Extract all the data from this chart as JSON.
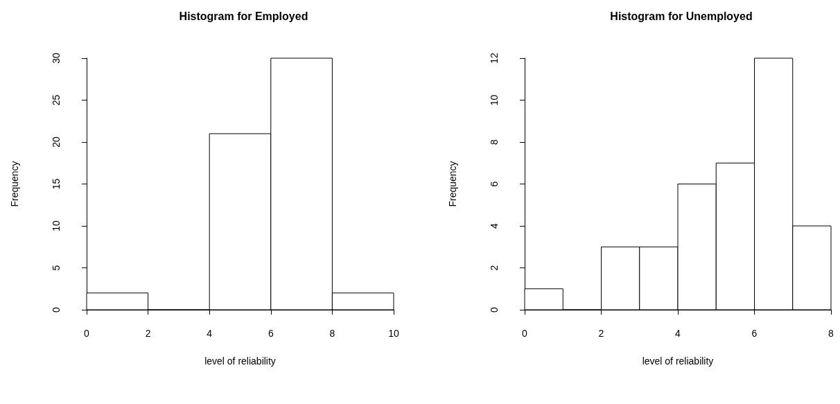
{
  "chart_data": [
    {
      "type": "histogram",
      "title": "Histogram for Employed",
      "xlabel": "level of reliability",
      "ylabel": "Frequency",
      "bins": [
        0,
        2,
        4,
        6,
        8,
        10
      ],
      "values": [
        2,
        0,
        21,
        30,
        2
      ],
      "color": "#ffffff",
      "xlim": [
        0,
        10
      ],
      "xticks": [
        0,
        2,
        4,
        6,
        8,
        10
      ],
      "ylim": [
        0,
        30
      ],
      "yticks": [
        0,
        5,
        10,
        15,
        20,
        25,
        30
      ]
    },
    {
      "type": "histogram",
      "title": "Histogram for Unemployed",
      "xlabel": "level of reliability",
      "ylabel": "Frequency",
      "bins": [
        0,
        1,
        2,
        3,
        4,
        5,
        6,
        7,
        8
      ],
      "values": [
        1,
        0,
        3,
        3,
        6,
        7,
        12,
        4
      ],
      "color": "#ffffff",
      "xlim": [
        0,
        8
      ],
      "xticks": [
        0,
        2,
        4,
        6,
        8
      ],
      "ylim": [
        0,
        12
      ],
      "yticks": [
        0,
        2,
        4,
        6,
        8,
        10,
        12
      ]
    }
  ]
}
